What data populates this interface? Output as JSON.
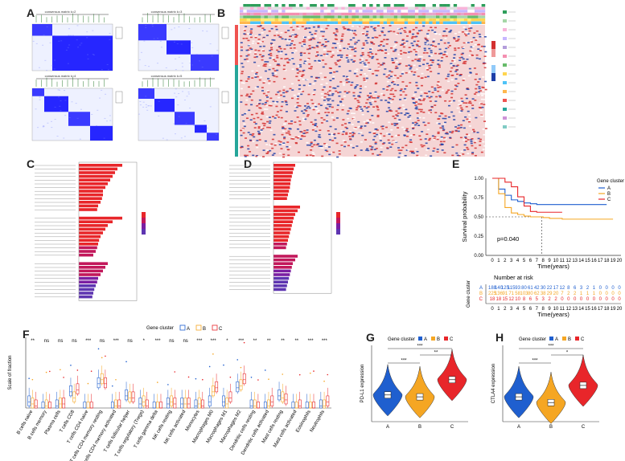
{
  "panel_labels": {
    "A": "A",
    "B": "B",
    "C": "C",
    "D": "D",
    "E": "E",
    "F": "F",
    "G": "G",
    "H": "H"
  },
  "colors": {
    "blue": "#1f5fcf",
    "orange": "#f5a623",
    "red": "#e8262a",
    "consensus": "#1a1aff"
  },
  "panel_a": {
    "consensus_titles": [
      "consensus matrix k=2",
      "consensus matrix k=3",
      "consensus matrix k=4",
      "consensus matrix k=5"
    ]
  },
  "panel_e": {
    "ylabel": "Survival probability",
    "xlabel": "Time(years)",
    "pvalue": "p=0.040",
    "legend_title": "Gene cluster",
    "legend": [
      "A",
      "B",
      "C"
    ],
    "y_ticks": [
      "1.00",
      "0.75",
      "0.50",
      "0.25",
      "0.00"
    ],
    "x_ticks": [
      "0",
      "1",
      "2",
      "3",
      "4",
      "5",
      "6",
      "7",
      "8",
      "9",
      "10",
      "11",
      "12",
      "13",
      "14",
      "15",
      "16",
      "17",
      "18",
      "19",
      "20"
    ],
    "risk_title": "Number at risk",
    "risk_ylabel": "Gene cluster",
    "risk_groups": [
      "A",
      "B",
      "C"
    ],
    "risk_rows": [
      [
        "188",
        "140",
        "125",
        "115",
        "93",
        "80",
        "61",
        "42",
        "30",
        "22",
        "17",
        "12",
        "8",
        "6",
        "3",
        "2",
        "1",
        "0",
        "0",
        "0",
        "0"
      ],
      [
        "225",
        "136",
        "91",
        "71",
        "58",
        "103",
        "80",
        "62",
        "38",
        "29",
        "20",
        "7",
        "2",
        "2",
        "1",
        "1",
        "1",
        "0",
        "0",
        "0",
        "0"
      ],
      [
        "18",
        "18",
        "15",
        "12",
        "10",
        "8",
        "6",
        "5",
        "3",
        "2",
        "2",
        "0",
        "0",
        "0",
        "0",
        "0",
        "0",
        "0",
        "0",
        "0",
        "0"
      ]
    ],
    "risk_xlabel": "Time(years)"
  },
  "panel_f": {
    "legend_title": "Gene cluster",
    "legend": [
      "A",
      "B",
      "C"
    ],
    "ylabel": "Scale of fraction",
    "cells": [
      "B cells naive",
      "B cells memory",
      "Plasma cells",
      "T cells CD8",
      "T cells CD4 naive",
      "T cells CD4 memory resting",
      "T cells CD4 memory activated",
      "T cells follicular helper",
      "T cells regulatory (Tregs)",
      "T cells gamma delta",
      "NK cells resting",
      "NK cells activated",
      "Monocytes",
      "Macrophages M0",
      "Macrophages M1",
      "Macrophages M2",
      "Dendritic cells resting",
      "Dendritic cells activated",
      "Mast cells resting",
      "Mast cells activated",
      "Eosinophils",
      "Neutrophils"
    ],
    "sig": [
      "**",
      "ns",
      "ns",
      "ns",
      "***",
      "ns",
      "***",
      "ns",
      "*",
      "***",
      "ns",
      "ns",
      "***",
      "***",
      "*",
      "***",
      "**",
      "**",
      "**",
      "**",
      "***",
      "***"
    ],
    "extra_sig": [
      "*",
      "***"
    ]
  },
  "panel_g": {
    "legend_title": "Gene cluster",
    "legend": [
      "A",
      "B",
      "C"
    ],
    "ylabel": "PD-L1 expression",
    "categories": [
      "A",
      "B",
      "C"
    ],
    "sig": [
      "***",
      "**",
      "***"
    ]
  },
  "panel_h": {
    "legend_title": "Gene cluster",
    "legend": [
      "A",
      "B",
      "C"
    ],
    "ylabel": "CTLA4 expression",
    "categories": [
      "A",
      "B",
      "C"
    ],
    "sig": [
      "***",
      "*",
      "***"
    ]
  },
  "chart_data": [
    {
      "type": "line",
      "title": "",
      "xlabel": "Time(years)",
      "ylabel": "Survival probability",
      "xlim": [
        0,
        20
      ],
      "ylim": [
        0,
        1
      ],
      "legend_position": "right",
      "series": [
        {
          "name": "A",
          "x": [
            0,
            1,
            2,
            3,
            4,
            5,
            6,
            7,
            8,
            9,
            10,
            11,
            12,
            13,
            14,
            15,
            16,
            17,
            18
          ],
          "y": [
            1.0,
            0.86,
            0.78,
            0.72,
            0.7,
            0.68,
            0.67,
            0.66,
            0.66,
            0.66,
            0.66,
            0.66,
            0.66,
            0.66,
            0.66,
            0.66,
            0.66,
            0.66,
            0.66
          ]
        },
        {
          "name": "B",
          "x": [
            0,
            1,
            2,
            3,
            4,
            5,
            6,
            7,
            8,
            9,
            10,
            11,
            12,
            13,
            14,
            15,
            16,
            17,
            18,
            19
          ],
          "y": [
            1.0,
            0.8,
            0.62,
            0.55,
            0.53,
            0.51,
            0.5,
            0.5,
            0.49,
            0.48,
            0.48,
            0.47,
            0.47,
            0.47,
            0.47,
            0.47,
            0.47,
            0.47,
            0.47,
            0.47
          ]
        },
        {
          "name": "C",
          "x": [
            0,
            1,
            2,
            3,
            4,
            5,
            6,
            7,
            8,
            9,
            10,
            11
          ],
          "y": [
            1.0,
            1.0,
            0.95,
            0.89,
            0.76,
            0.64,
            0.57,
            0.56,
            0.56,
            0.56,
            0.56,
            0.56
          ]
        }
      ],
      "annotation": "p=0.040",
      "median_line_y": 0.5,
      "median_time_x": 7.8
    },
    {
      "type": "box",
      "ylabel": "Scale of fraction",
      "categories": [
        "B cells naive",
        "B cells memory",
        "Plasma cells",
        "T cells CD8",
        "T cells CD4 naive",
        "T cells CD4 memory resting",
        "T cells CD4 memory activated",
        "T cells follicular helper",
        "T cells regulatory (Tregs)",
        "T cells gamma delta",
        "NK cells resting",
        "NK cells activated",
        "Monocytes",
        "Macrophages M0",
        "Macrophages M1",
        "Macrophages M2",
        "Dendritic cells resting",
        "Dendritic cells activated",
        "Mast cells resting",
        "Mast cells activated",
        "Eosinophils",
        "Neutrophils"
      ],
      "series": [
        {
          "name": "A",
          "median": [
            0.03,
            0.0,
            0.01,
            0.08,
            0.0,
            0.12,
            0.0,
            0.06,
            0.02,
            0.0,
            0.02,
            0.02,
            0.01,
            0.03,
            0.03,
            0.1,
            0.01,
            0.0,
            0.06,
            0.0,
            0.0,
            0.01
          ]
        },
        {
          "name": "B",
          "median": [
            0.02,
            0.01,
            0.02,
            0.05,
            0.0,
            0.14,
            0.01,
            0.05,
            0.03,
            0.0,
            0.03,
            0.02,
            0.02,
            0.08,
            0.02,
            0.11,
            0.01,
            0.01,
            0.05,
            0.0,
            0.0,
            0.01
          ]
        },
        {
          "name": "C",
          "median": [
            0.01,
            0.0,
            0.02,
            0.09,
            0.0,
            0.12,
            0.01,
            0.05,
            0.01,
            0.0,
            0.02,
            0.02,
            0.01,
            0.1,
            0.05,
            0.14,
            0.0,
            0.03,
            0.04,
            0.01,
            0.0,
            0.03
          ]
        }
      ]
    },
    {
      "type": "violin",
      "ylabel": "PD-L1 expression",
      "categories": [
        "A",
        "B",
        "C"
      ],
      "medians": [
        2.4,
        2.3,
        3.2
      ]
    },
    {
      "type": "violin",
      "ylabel": "CTLA4 expression",
      "categories": [
        "A",
        "B",
        "C"
      ],
      "medians": [
        2.3,
        2.0,
        2.9
      ]
    }
  ]
}
